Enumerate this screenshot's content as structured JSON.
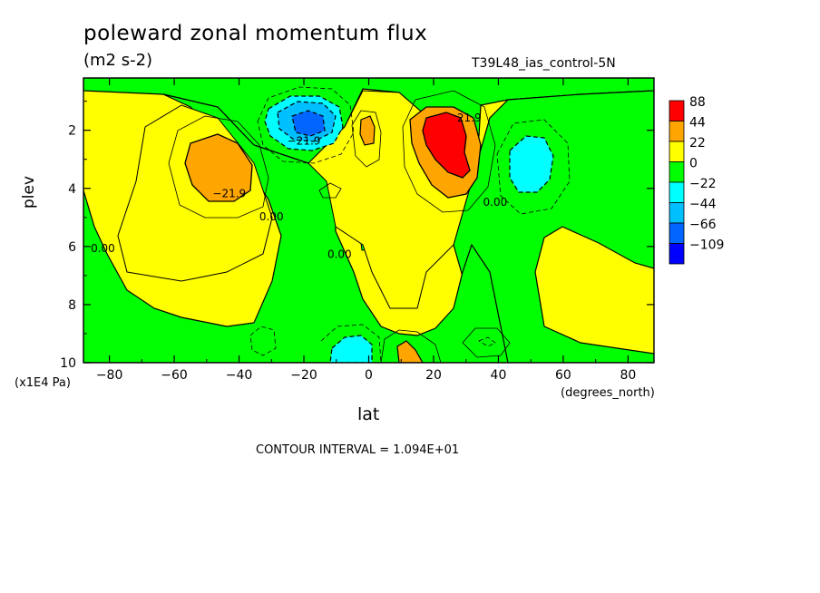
{
  "chart_data": {
    "type": "heatmap",
    "title": "poleward zonal momentum flux",
    "units": "(m2 s-2)",
    "run_label": "T39L48_ias_control-5N",
    "xlabel": "lat",
    "xunits": "(degrees_north)",
    "ylabel": "plev",
    "yunits": "(x1E4 Pa)",
    "xlim": [
      -88,
      88
    ],
    "ylim": [
      10,
      0.2
    ],
    "x_ticks": [
      -80,
      -60,
      -40,
      -20,
      0,
      20,
      40,
      60,
      80
    ],
    "y_ticks": [
      2,
      4,
      6,
      8,
      10
    ],
    "contour_interval": "CONTOUR INTERVAL = 1.094E+01",
    "legend": {
      "position": "right",
      "levels": [
        "88",
        "44",
        "22",
        "0",
        "-22",
        "-44",
        "-66",
        "-109"
      ],
      "colors": [
        "#ff0000",
        "#ffa500",
        "#ffff00",
        "#00ff00",
        "#00ffff",
        "#00bfff",
        "#0066ff",
        "#0000ff"
      ]
    },
    "contour_labels": [
      {
        "text": "-21.9",
        "x": -20,
        "y": 2.5
      },
      {
        "text": "-21.9",
        "x": -43,
        "y": 4.3
      },
      {
        "text": "0.00",
        "x": -30,
        "y": 5.1
      },
      {
        "text": "0.00",
        "x": -82,
        "y": 6.2
      },
      {
        "text": "0.00",
        "x": -9,
        "y": 6.4
      },
      {
        "text": "21.9",
        "x": 31,
        "y": 1.7
      },
      {
        "text": "0.00",
        "x": 39,
        "y": 4.6
      }
    ],
    "features": [
      {
        "sign": "positive",
        "level": "22",
        "x": -47,
        "y": 2.9
      },
      {
        "sign": "negative",
        "level": "-66",
        "x": -20,
        "y": 1.8
      },
      {
        "sign": "positive",
        "level": "88",
        "x": 22,
        "y": 2.2
      },
      {
        "sign": "positive",
        "level": "22",
        "x": -1,
        "y": 2.0
      },
      {
        "sign": "negative",
        "level": "-44",
        "x": 49,
        "y": 3.0
      },
      {
        "sign": "negative",
        "level": "-44",
        "x": -6,
        "y": 9.4
      },
      {
        "sign": "positive",
        "level": "22",
        "x": 12,
        "y": 9.6
      }
    ]
  }
}
